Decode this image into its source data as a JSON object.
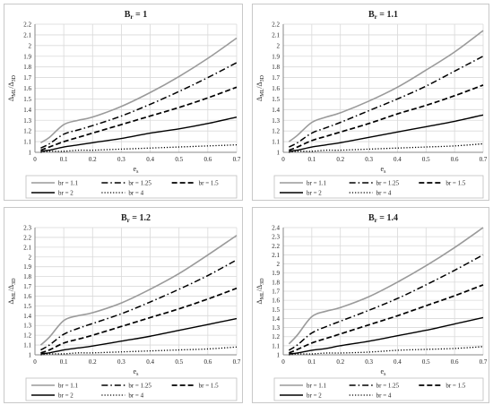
{
  "chart_data": [
    {
      "type": "line",
      "title": "B_r = 1",
      "title_main": "B",
      "title_sub": "r",
      "title_rest": " = 1",
      "xlabel_main": "e",
      "xlabel_sub": "s",
      "ylabel_main": "Δ",
      "ylabel_sub1": "ML",
      "ylabel_slash": "/Δ",
      "ylabel_sub2": "3D",
      "xlim": [
        0,
        0.7
      ],
      "ylim": [
        1,
        2.2
      ],
      "xticks": [
        "0",
        "0.1",
        "0.2",
        "0.3",
        "0.4",
        "0.5",
        "0.6",
        "0.7"
      ],
      "yticks": [
        "1",
        "1.1",
        "1.2",
        "1.3",
        "1.4",
        "1.5",
        "1.6",
        "1.7",
        "1.8",
        "1.9",
        "2",
        "2.1",
        "2.2"
      ],
      "grid": true,
      "legend": "bottom",
      "x": [
        0.02,
        0.05,
        0.1,
        0.15,
        0.2,
        0.3,
        0.4,
        0.5,
        0.6,
        0.7
      ],
      "series": [
        {
          "name": "br = 1.1",
          "style": "solid-gray",
          "values": [
            1.09,
            1.14,
            1.26,
            1.3,
            1.33,
            1.43,
            1.56,
            1.71,
            1.88,
            2.07
          ]
        },
        {
          "name": "br = 1.25",
          "style": "dashdot",
          "values": [
            1.04,
            1.08,
            1.17,
            1.21,
            1.25,
            1.34,
            1.45,
            1.57,
            1.7,
            1.84
          ]
        },
        {
          "name": "br = 1.5",
          "style": "dashed",
          "values": [
            1.02,
            1.05,
            1.1,
            1.14,
            1.18,
            1.26,
            1.34,
            1.42,
            1.51,
            1.61
          ]
        },
        {
          "name": "br = 2",
          "style": "solid-black",
          "values": [
            1.01,
            1.02,
            1.05,
            1.07,
            1.09,
            1.13,
            1.18,
            1.22,
            1.27,
            1.33
          ]
        },
        {
          "name": "br = 4",
          "style": "dotted",
          "values": [
            1.0,
            1.01,
            1.01,
            1.02,
            1.02,
            1.03,
            1.04,
            1.05,
            1.06,
            1.07
          ]
        }
      ]
    },
    {
      "type": "line",
      "title": "B_r = 1.1",
      "title_main": "B",
      "title_sub": "r",
      "title_rest": " = 1.1",
      "xlabel_main": "e",
      "xlabel_sub": "s",
      "ylabel_main": "Δ",
      "ylabel_sub1": "ML",
      "ylabel_slash": "/Δ",
      "ylabel_sub2": "3D",
      "xlim": [
        0,
        0.7
      ],
      "ylim": [
        1,
        2.2
      ],
      "xticks": [
        "0",
        "0.1",
        "0.2",
        "0.3",
        "0.4",
        "0.5",
        "0.6",
        "0.7"
      ],
      "yticks": [
        "1",
        "1.1",
        "1.2",
        "1.3",
        "1.4",
        "1.5",
        "1.6",
        "1.7",
        "1.8",
        "1.9",
        "2",
        "2.1",
        "2.2"
      ],
      "grid": true,
      "legend": "bottom",
      "x": [
        0.02,
        0.05,
        0.1,
        0.15,
        0.2,
        0.3,
        0.4,
        0.5,
        0.6,
        0.7
      ],
      "series": [
        {
          "name": "br = 1.1",
          "style": "solid-gray",
          "values": [
            1.1,
            1.16,
            1.28,
            1.33,
            1.37,
            1.48,
            1.61,
            1.77,
            1.94,
            2.14
          ]
        },
        {
          "name": "br = 1.25",
          "style": "dashdot",
          "values": [
            1.05,
            1.09,
            1.18,
            1.23,
            1.28,
            1.39,
            1.5,
            1.62,
            1.76,
            1.9
          ]
        },
        {
          "name": "br = 1.5",
          "style": "dashed",
          "values": [
            1.02,
            1.05,
            1.11,
            1.15,
            1.19,
            1.27,
            1.36,
            1.44,
            1.53,
            1.63
          ]
        },
        {
          "name": "br = 2",
          "style": "solid-black",
          "values": [
            1.01,
            1.02,
            1.05,
            1.07,
            1.09,
            1.14,
            1.19,
            1.24,
            1.29,
            1.35
          ]
        },
        {
          "name": "br = 4",
          "style": "dotted",
          "values": [
            1.0,
            1.01,
            1.01,
            1.02,
            1.02,
            1.03,
            1.04,
            1.05,
            1.06,
            1.08
          ]
        }
      ]
    },
    {
      "type": "line",
      "title": "B_r = 1.2",
      "title_main": "B",
      "title_sub": "r",
      "title_rest": " = 1.2",
      "xlabel_main": "e",
      "xlabel_sub": "s",
      "ylabel_main": "Δ",
      "ylabel_sub1": "ML",
      "ylabel_slash": "/Δ",
      "ylabel_sub2": "3D",
      "xlim": [
        0,
        0.7
      ],
      "ylim": [
        1,
        2.3
      ],
      "xticks": [
        "0",
        "0.1",
        "0.2",
        "0.3",
        "0.4",
        "0.5",
        "0.6",
        "0.7"
      ],
      "yticks": [
        "1",
        "1.1",
        "1.2",
        "1.3",
        "1.4",
        "1.5",
        "1.6",
        "1.7",
        "1.8",
        "1.9",
        "2",
        "2.1",
        "2.2",
        "2.3"
      ],
      "grid": true,
      "legend": "bottom",
      "x": [
        0.02,
        0.05,
        0.1,
        0.15,
        0.2,
        0.3,
        0.4,
        0.5,
        0.6,
        0.7
      ],
      "series": [
        {
          "name": "br = 1.1",
          "style": "solid-gray",
          "values": [
            1.1,
            1.18,
            1.35,
            1.4,
            1.43,
            1.53,
            1.67,
            1.83,
            2.02,
            2.22
          ]
        },
        {
          "name": "br = 1.25",
          "style": "dashdot",
          "values": [
            1.05,
            1.1,
            1.21,
            1.27,
            1.32,
            1.42,
            1.54,
            1.67,
            1.81,
            1.97
          ]
        },
        {
          "name": "br = 1.5",
          "style": "dashed",
          "values": [
            1.02,
            1.05,
            1.12,
            1.16,
            1.2,
            1.29,
            1.38,
            1.47,
            1.57,
            1.68
          ]
        },
        {
          "name": "br = 2",
          "style": "solid-black",
          "values": [
            1.01,
            1.02,
            1.05,
            1.07,
            1.09,
            1.14,
            1.19,
            1.25,
            1.31,
            1.37
          ]
        },
        {
          "name": "br = 4",
          "style": "dotted",
          "values": [
            1.0,
            1.01,
            1.01,
            1.02,
            1.02,
            1.03,
            1.04,
            1.05,
            1.06,
            1.08
          ]
        }
      ]
    },
    {
      "type": "line",
      "title": "B_r = 1.4",
      "title_main": "B",
      "title_sub": "r",
      "title_rest": " = 1.4",
      "xlabel_main": "e",
      "xlabel_sub": "s",
      "ylabel_main": "Δ",
      "ylabel_sub1": "ML",
      "ylabel_slash": "/Δ",
      "ylabel_sub2": "3D",
      "xlim": [
        0,
        0.7
      ],
      "ylim": [
        1,
        2.4
      ],
      "xticks": [
        "0",
        "0.1",
        "0.2",
        "0.3",
        "0.4",
        "0.5",
        "0.6",
        "0.7"
      ],
      "yticks": [
        "1",
        "1.1",
        "1.2",
        "1.3",
        "1.4",
        "1.5",
        "1.6",
        "1.7",
        "1.8",
        "1.9",
        "2",
        "2.1",
        "2.2",
        "2.3",
        "2.4"
      ],
      "grid": true,
      "legend": "bottom",
      "x": [
        0.02,
        0.05,
        0.1,
        0.15,
        0.2,
        0.3,
        0.4,
        0.5,
        0.6,
        0.7
      ],
      "series": [
        {
          "name": "br = 1.1",
          "style": "solid-gray",
          "values": [
            1.12,
            1.22,
            1.42,
            1.48,
            1.52,
            1.64,
            1.8,
            1.98,
            2.18,
            2.4
          ]
        },
        {
          "name": "br = 1.25",
          "style": "dashdot",
          "values": [
            1.05,
            1.11,
            1.24,
            1.31,
            1.37,
            1.49,
            1.62,
            1.77,
            1.93,
            2.1
          ]
        },
        {
          "name": "br = 1.5",
          "style": "dashed",
          "values": [
            1.02,
            1.06,
            1.13,
            1.18,
            1.23,
            1.33,
            1.43,
            1.54,
            1.65,
            1.77
          ]
        },
        {
          "name": "br = 2",
          "style": "solid-black",
          "values": [
            1.01,
            1.02,
            1.05,
            1.07,
            1.1,
            1.15,
            1.21,
            1.27,
            1.34,
            1.41
          ]
        },
        {
          "name": "br = 4",
          "style": "dotted",
          "values": [
            1.0,
            1.01,
            1.01,
            1.02,
            1.02,
            1.03,
            1.05,
            1.06,
            1.07,
            1.09
          ]
        }
      ]
    }
  ],
  "colors": {
    "gray_line": "#9a9a9a",
    "black_line": "#000000",
    "grid": "#d9d9d9",
    "border": "#c8c8c8"
  }
}
